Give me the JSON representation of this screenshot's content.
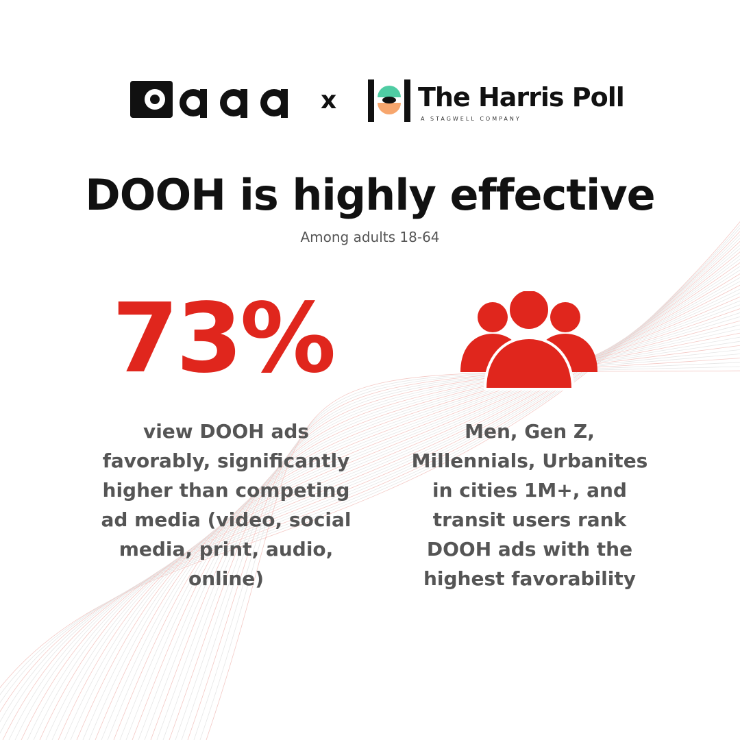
{
  "header": {
    "oaaa_logo_text": "oaaa",
    "separator": "x",
    "harris_logo_name": "The Harris Poll",
    "harris_logo_tagline": "A STAGWELL COMPANY"
  },
  "headline": "DOOH is highly effective",
  "subhead": "Among adults 18-64",
  "stat": {
    "value": "73%",
    "caption": "view DOOH ads favorably, significantly higher than competing ad media (video, social media, print, audio, online)"
  },
  "audience": {
    "icon": "people-group-icon",
    "caption": "Men, Gen Z, Millennials, Urbanites in cities 1M+, and transit users rank DOOH ads with the highest favorability"
  },
  "colors": {
    "accent": "#e0261d",
    "harris_teal": "#4fcca3",
    "harris_orange": "#f7a66d",
    "text_dark": "#111111",
    "text_gray": "#555555"
  }
}
